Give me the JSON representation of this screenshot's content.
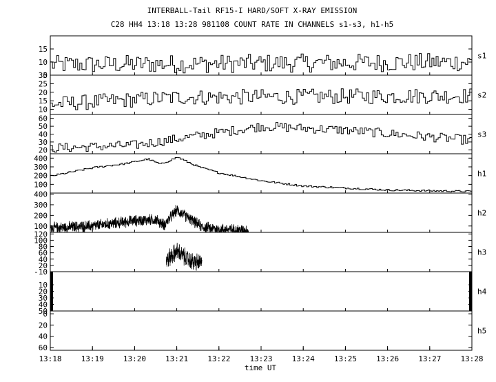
{
  "title_line1": "INTERBALL-Tail RF15-I HARD/SOFT X-RAY EMISSION",
  "title_line2": "C28 HH4 13:18 13:28 981108  COUNT RATE IN CHANNELS s1-s3, h1-h5",
  "chart_data": {
    "type": "line",
    "x_axis": {
      "label": "time UT",
      "tick_labels": [
        "13:18",
        "13:19",
        "13:20",
        "13:21",
        "13:22",
        "13:23",
        "13:24",
        "13:25",
        "13:26",
        "13:27",
        "13:28"
      ],
      "range_minutes": [
        0,
        10
      ]
    },
    "panels": [
      {
        "channel": "s1",
        "ylim": [
          5,
          20
        ],
        "y_ticks": [
          "15",
          "10",
          "5"
        ],
        "tick_values": [
          15,
          10,
          5
        ],
        "profile": {
          "times": [
            0,
            10
          ],
          "values": [
            9,
            10
          ]
        },
        "noise": 3.5,
        "step_min": 0.05,
        "style": "step",
        "x_range": [
          0,
          10
        ]
      },
      {
        "channel": "s2",
        "ylim": [
          7,
          30
        ],
        "y_ticks": [
          "30",
          "25",
          "20",
          "15",
          "10"
        ],
        "tick_values": [
          30,
          25,
          20,
          15,
          10
        ],
        "profile": {
          "times": [
            0,
            3,
            10
          ],
          "values": [
            13,
            17,
            18
          ]
        },
        "noise": 4.5,
        "step_min": 0.05,
        "style": "step",
        "x_range": [
          0,
          10
        ]
      },
      {
        "channel": "s3",
        "ylim": [
          15,
          65
        ],
        "y_ticks": [
          "60",
          "50",
          "40",
          "30",
          "20"
        ],
        "tick_values": [
          60,
          50,
          40,
          30,
          20
        ],
        "profile": {
          "times": [
            0,
            2,
            4,
            5,
            7,
            10
          ],
          "values": [
            22,
            26,
            42,
            50,
            45,
            32
          ]
        },
        "noise": 6,
        "step_min": 0.05,
        "style": "step",
        "x_range": [
          0,
          10
        ]
      },
      {
        "channel": "h1",
        "ylim": [
          0,
          450
        ],
        "y_ticks": [
          "400",
          "300",
          "200",
          "100"
        ],
        "tick_values": [
          400,
          300,
          200,
          100
        ],
        "profile": {
          "times": [
            0,
            1,
            1.8,
            2.3,
            2.6,
            3.0,
            3.5,
            4.0,
            5.0,
            6.0,
            8.0,
            10.0
          ],
          "values": [
            195,
            290,
            340,
            390,
            330,
            410,
            300,
            230,
            140,
            80,
            35,
            18
          ]
        },
        "noise": 10,
        "step_min": 0.04,
        "style": "step",
        "x_range": [
          0,
          10
        ]
      },
      {
        "channel": "h2",
        "ylim": [
          40,
          410
        ],
        "y_ticks": [
          "400",
          "300",
          "200",
          "100"
        ],
        "tick_values": [
          400,
          300,
          200,
          100
        ],
        "profile": {
          "times": [
            0,
            1,
            2,
            2.5,
            2.7,
            3.0,
            3.3,
            3.6,
            4.0,
            4.7
          ],
          "values": [
            80,
            100,
            150,
            160,
            110,
            250,
            170,
            90,
            70,
            60
          ]
        },
        "noise": 40,
        "step_min": 0.004,
        "style": "noise",
        "x_range": [
          0,
          4.7
        ]
      },
      {
        "channel": "h3",
        "ylim": [
          0,
          125
        ],
        "y_ticks": [
          "120",
          "100",
          "80",
          "60",
          "40",
          "20"
        ],
        "tick_values": [
          120,
          100,
          80,
          60,
          40,
          20
        ],
        "profile": {
          "times": [
            2.75,
            3.0,
            3.3,
            3.6
          ],
          "values": [
            35,
            65,
            35,
            25
          ]
        },
        "noise": 22,
        "step_min": 0.004,
        "style": "noise",
        "x_range": [
          2.75,
          3.6
        ]
      },
      {
        "channel": "h4",
        "ylim": [
          -10,
          50
        ],
        "invert": true,
        "y_ticks": [
          "-10",
          "10",
          "20",
          "30",
          "40",
          "50"
        ],
        "tick_values": [
          -10,
          10,
          20,
          30,
          40,
          50
        ],
        "edge_bars": [
          0,
          10
        ]
      },
      {
        "channel": "h5",
        "ylim": [
          -5,
          65
        ],
        "invert": true,
        "y_ticks": [
          "0",
          "20",
          "40",
          "60"
        ],
        "tick_values": [
          0,
          20,
          40,
          60
        ]
      }
    ]
  }
}
